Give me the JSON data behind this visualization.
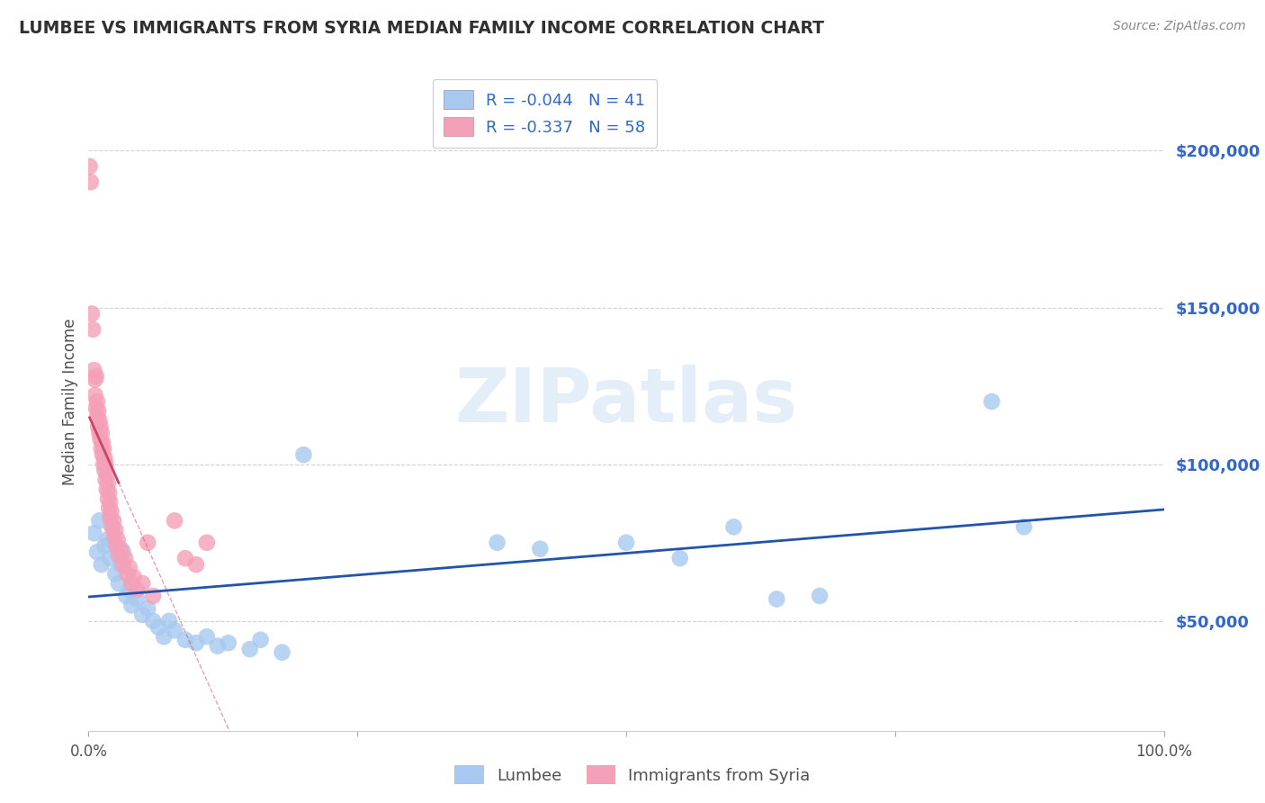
{
  "title": "LUMBEE VS IMMIGRANTS FROM SYRIA MEDIAN FAMILY INCOME CORRELATION CHART",
  "source": "Source: ZipAtlas.com",
  "ylabel": "Median Family Income",
  "watermark": "ZIPatlas",
  "lumbee_R": -0.044,
  "lumbee_N": 41,
  "syria_R": -0.337,
  "syria_N": 58,
  "yticks": [
    50000,
    100000,
    150000,
    200000
  ],
  "ytick_labels": [
    "$50,000",
    "$100,000",
    "$150,000",
    "$200,000"
  ],
  "xlim": [
    0.0,
    1.0
  ],
  "ylim": [
    15000,
    225000
  ],
  "lumbee_scatter": [
    [
      0.005,
      78000
    ],
    [
      0.008,
      72000
    ],
    [
      0.01,
      82000
    ],
    [
      0.012,
      68000
    ],
    [
      0.015,
      74000
    ],
    [
      0.018,
      76000
    ],
    [
      0.02,
      70000
    ],
    [
      0.022,
      80000
    ],
    [
      0.025,
      65000
    ],
    [
      0.028,
      62000
    ],
    [
      0.03,
      68000
    ],
    [
      0.032,
      72000
    ],
    [
      0.035,
      58000
    ],
    [
      0.038,
      60000
    ],
    [
      0.04,
      55000
    ],
    [
      0.045,
      57000
    ],
    [
      0.05,
      52000
    ],
    [
      0.055,
      54000
    ],
    [
      0.06,
      50000
    ],
    [
      0.065,
      48000
    ],
    [
      0.07,
      45000
    ],
    [
      0.075,
      50000
    ],
    [
      0.08,
      47000
    ],
    [
      0.09,
      44000
    ],
    [
      0.1,
      43000
    ],
    [
      0.11,
      45000
    ],
    [
      0.12,
      42000
    ],
    [
      0.13,
      43000
    ],
    [
      0.15,
      41000
    ],
    [
      0.16,
      44000
    ],
    [
      0.18,
      40000
    ],
    [
      0.2,
      103000
    ],
    [
      0.38,
      75000
    ],
    [
      0.42,
      73000
    ],
    [
      0.5,
      75000
    ],
    [
      0.55,
      70000
    ],
    [
      0.6,
      80000
    ],
    [
      0.64,
      57000
    ],
    [
      0.68,
      58000
    ],
    [
      0.84,
      120000
    ],
    [
      0.87,
      80000
    ]
  ],
  "syria_scatter": [
    [
      0.001,
      195000
    ],
    [
      0.002,
      190000
    ],
    [
      0.003,
      148000
    ],
    [
      0.004,
      143000
    ],
    [
      0.005,
      130000
    ],
    [
      0.006,
      127000
    ],
    [
      0.006,
      122000
    ],
    [
      0.007,
      128000
    ],
    [
      0.007,
      118000
    ],
    [
      0.008,
      120000
    ],
    [
      0.008,
      115000
    ],
    [
      0.009,
      117000
    ],
    [
      0.009,
      112000
    ],
    [
      0.01,
      114000
    ],
    [
      0.01,
      110000
    ],
    [
      0.011,
      112000
    ],
    [
      0.011,
      108000
    ],
    [
      0.012,
      110000
    ],
    [
      0.012,
      105000
    ],
    [
      0.013,
      107000
    ],
    [
      0.013,
      103000
    ],
    [
      0.014,
      105000
    ],
    [
      0.014,
      100000
    ],
    [
      0.015,
      102000
    ],
    [
      0.015,
      98000
    ],
    [
      0.016,
      100000
    ],
    [
      0.016,
      95000
    ],
    [
      0.017,
      97000
    ],
    [
      0.017,
      92000
    ],
    [
      0.018,
      94000
    ],
    [
      0.018,
      89000
    ],
    [
      0.019,
      91000
    ],
    [
      0.019,
      86000
    ],
    [
      0.02,
      88000
    ],
    [
      0.02,
      83000
    ],
    [
      0.021,
      85000
    ],
    [
      0.022,
      80000
    ],
    [
      0.023,
      82000
    ],
    [
      0.024,
      77000
    ],
    [
      0.025,
      79000
    ],
    [
      0.026,
      74000
    ],
    [
      0.027,
      76000
    ],
    [
      0.028,
      71000
    ],
    [
      0.03,
      73000
    ],
    [
      0.032,
      68000
    ],
    [
      0.034,
      70000
    ],
    [
      0.036,
      65000
    ],
    [
      0.038,
      67000
    ],
    [
      0.04,
      62000
    ],
    [
      0.042,
      64000
    ],
    [
      0.045,
      60000
    ],
    [
      0.05,
      62000
    ],
    [
      0.055,
      75000
    ],
    [
      0.06,
      58000
    ],
    [
      0.08,
      82000
    ],
    [
      0.09,
      70000
    ],
    [
      0.1,
      68000
    ],
    [
      0.11,
      75000
    ]
  ],
  "lumbee_color": "#a8c8f0",
  "syria_color": "#f4a0b8",
  "lumbee_line_color": "#2255aa",
  "syria_line_color": "#cc4466",
  "syria_line_start": 0.001,
  "syria_line_end_solid": 0.028,
  "syria_line_end_dash": 0.6,
  "background_color": "#ffffff",
  "grid_color": "#cccccc",
  "title_color": "#303030",
  "axis_label_color": "#505050",
  "tick_color": "#3366cc",
  "source_color": "#888888"
}
